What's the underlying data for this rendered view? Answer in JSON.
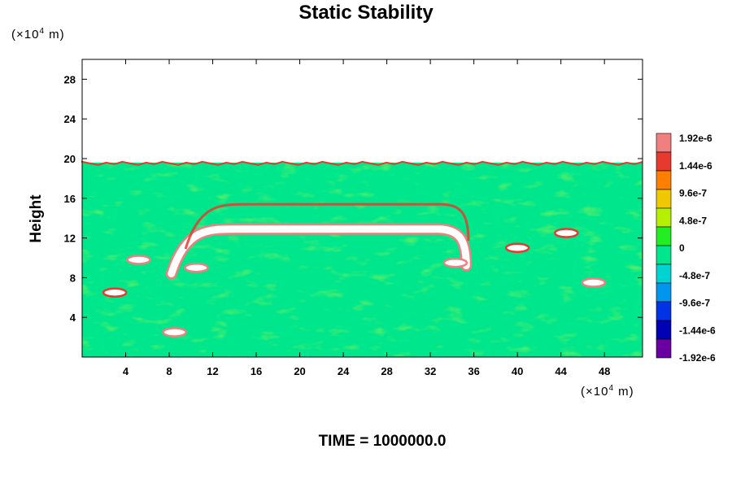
{
  "chart_data": {
    "type": "heatmap",
    "title": "Static Stability",
    "ylabel": "Height",
    "y_unit": {
      "prefix": "(×10",
      "exp": "4",
      "suffix": " m)"
    },
    "x_unit": {
      "prefix": "(×10",
      "exp": "4",
      "suffix": " m)"
    },
    "footer": "TIME = 1000000.0",
    "xlim": [
      0,
      51.5
    ],
    "ylim": [
      0,
      30
    ],
    "x_ticks": [
      4,
      8,
      12,
      16,
      20,
      24,
      28,
      32,
      36,
      40,
      44,
      48
    ],
    "y_ticks": [
      4,
      8,
      12,
      16,
      20,
      24,
      28
    ],
    "data_top": 19.6,
    "background_value": 0,
    "features": [
      {
        "kind": "arch-band",
        "x0": 8.2,
        "x1": 35.3,
        "y_peak": 12.9,
        "value": 1.92e-06
      },
      {
        "kind": "arch-band",
        "x0": 9.5,
        "x1": 35.5,
        "y_peak": 15.4,
        "value": 1.44e-06
      },
      {
        "kind": "blob",
        "x": 10.5,
        "y": 9.0,
        "value": 1.92e-06
      },
      {
        "kind": "blob",
        "x": 34.3,
        "y": 9.5,
        "value": 1.92e-06
      },
      {
        "kind": "blob",
        "x": 5.2,
        "y": 9.8,
        "value": 1.92e-06
      },
      {
        "kind": "blob",
        "x": 44.5,
        "y": 12.5,
        "value": 1.44e-06
      },
      {
        "kind": "blob",
        "x": 40.0,
        "y": 11.0,
        "value": 1.44e-06
      },
      {
        "kind": "blob",
        "x": 47.0,
        "y": 7.5,
        "value": 1.92e-06
      },
      {
        "kind": "blob",
        "x": 3.0,
        "y": 6.5,
        "value": 1.44e-06
      },
      {
        "kind": "blob",
        "x": 8.5,
        "y": 2.5,
        "value": 1.92e-06
      }
    ],
    "colorbar": {
      "labels": [
        "1.92e-6",
        "1.44e-6",
        "9.6e-7",
        "4.8e-7",
        "0",
        "-4.8e-7",
        "-9.6e-7",
        "-1.44e-6",
        "-1.92e-6"
      ],
      "colors": [
        "#f07f7f",
        "#e63a2e",
        "#ff7f00",
        "#f0c800",
        "#b4f000",
        "#22ee22",
        "#00e68c",
        "#00d2d2",
        "#0096f0",
        "#0032e6",
        "#0000b4",
        "#6a00a0"
      ]
    }
  }
}
